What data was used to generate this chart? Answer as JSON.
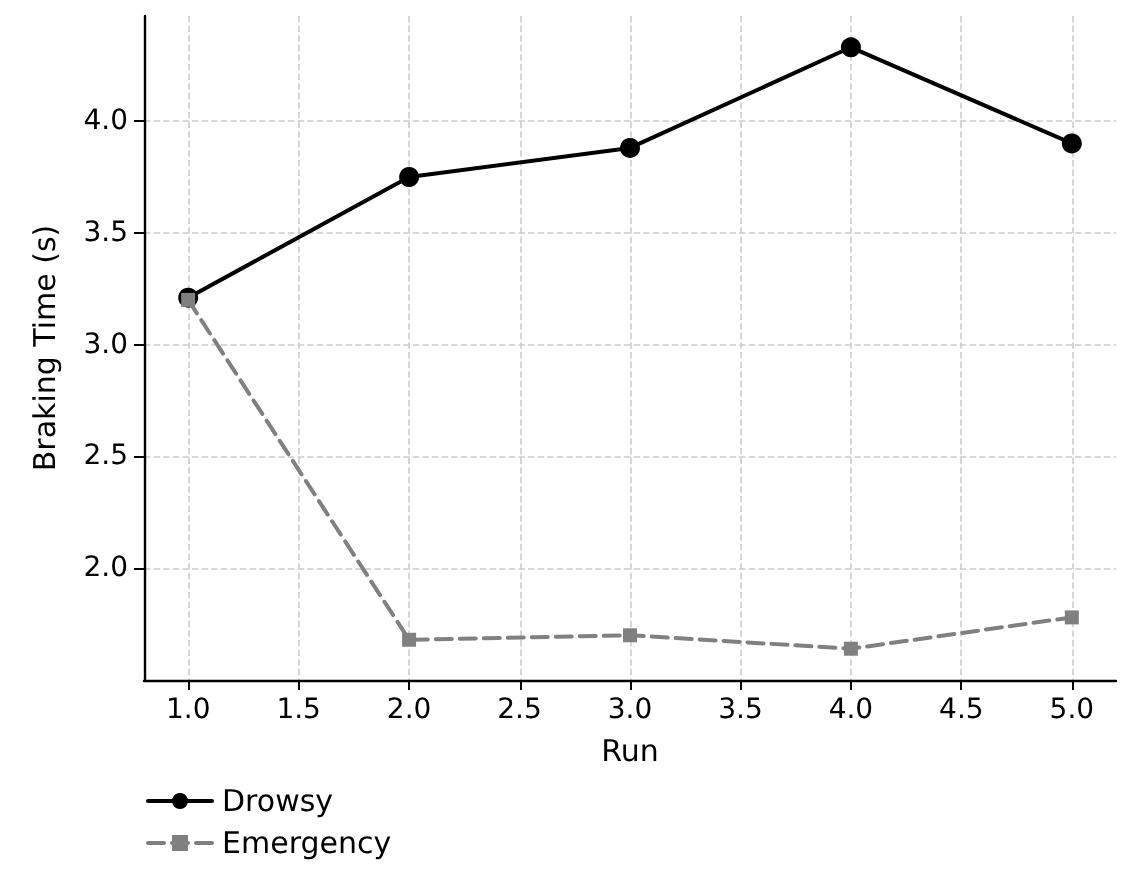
{
  "chart_data": {
    "type": "line",
    "xlabel": "Run",
    "ylabel": "Braking Time (s)",
    "x": [
      1,
      2,
      3,
      4,
      5
    ],
    "series": [
      {
        "name": "Drowsy",
        "color": "#000000",
        "values": [
          3.21,
          3.75,
          3.88,
          4.33,
          3.9
        ],
        "marker": "circle",
        "line_style": "solid"
      },
      {
        "name": "Emergency",
        "color": "#808080",
        "values": [
          3.2,
          1.68,
          1.7,
          1.64,
          1.78
        ],
        "marker": "square",
        "line_style": "dashed"
      }
    ],
    "xlim": [
      0.8,
      5.2
    ],
    "xticks": [
      {
        "value": 1,
        "label": "1.0"
      },
      {
        "value": 1.5,
        "label": "1.5"
      },
      {
        "value": 2,
        "label": "2.0"
      },
      {
        "value": 2.5,
        "label": "2.5"
      },
      {
        "value": 3,
        "label": "3.0"
      },
      {
        "value": 3.5,
        "label": "3.5"
      },
      {
        "value": 4,
        "label": "4.0"
      },
      {
        "value": 4.5,
        "label": "4.5"
      },
      {
        "value": 5,
        "label": "5.0"
      }
    ],
    "ylim": [
      1.5,
      4.47
    ],
    "yticks": [
      {
        "value": 2,
        "label": "2.0"
      },
      {
        "value": 2.5,
        "label": "2.5"
      },
      {
        "value": 3,
        "label": "3.0"
      },
      {
        "value": 3.5,
        "label": "3.5"
      },
      {
        "value": 4,
        "label": "4.0"
      }
    ],
    "grid": true,
    "legend": "bottom left"
  }
}
